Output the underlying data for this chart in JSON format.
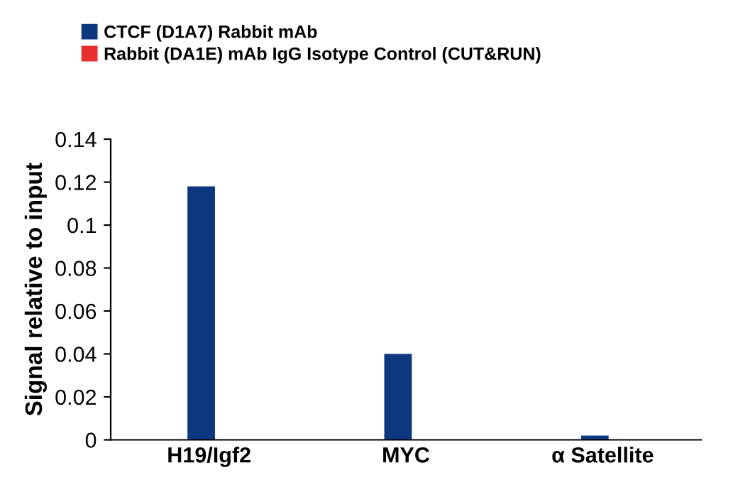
{
  "chart_data": {
    "type": "bar",
    "ylabel": "Signal relative to input",
    "categories": [
      "H19/Igf2",
      "MYC",
      "α Satellite"
    ],
    "series": [
      {
        "name": "CTCF (D1A7) Rabbit mAb",
        "color": "#0d3880",
        "values": [
          0.118,
          0.04,
          0.002
        ]
      },
      {
        "name": "Rabbit (DA1E) mAb IgG Isotype Control (CUT&RUN)",
        "color": "#e8312f",
        "values": [
          0,
          0,
          0
        ]
      }
    ],
    "ylim": [
      0,
      0.14
    ],
    "yticks": [
      {
        "value": 0,
        "label": "0"
      },
      0.02,
      0.04,
      0.06,
      0.08,
      0.1,
      0.12,
      0.14
    ],
    "grid": false,
    "legend": "top left"
  }
}
